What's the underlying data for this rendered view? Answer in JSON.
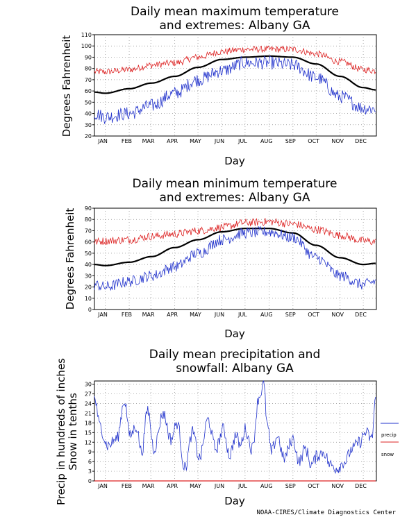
{
  "months": [
    "JAN",
    "FEB",
    "MAR",
    "APR",
    "MAY",
    "JUN",
    "JUL",
    "AUG",
    "SEP",
    "OCT",
    "NOV",
    "DEC"
  ],
  "credit": "NOAA-CIRES/Climate Diagnostics Center",
  "colors": {
    "mean": "#000000",
    "max_extreme": "#dd2222",
    "min_extreme": "#2233cc",
    "precip": "#2233cc",
    "snow": "#dd2222",
    "grid": "#888888"
  },
  "chart_data": [
    {
      "type": "line",
      "title_line1": "Daily mean maximum temperature",
      "title_line2": "and extremes: Albany GA",
      "xlabel": "Day",
      "ylabel": "Degrees Fahrenheit",
      "ylim": [
        20,
        110
      ],
      "yticks": [
        20,
        30,
        40,
        50,
        60,
        70,
        80,
        90,
        100,
        110
      ],
      "grid": true,
      "series": [
        {
          "role": "high-extreme",
          "anchors_x": [
            1,
            15,
            46,
            75,
            105,
            135,
            166,
            196,
            227,
            258,
            288,
            319,
            349,
            365
          ],
          "anchors_y": [
            77,
            77,
            79,
            83,
            85,
            90,
            95,
            97,
            97,
            97,
            93,
            86,
            79,
            78
          ],
          "noise": 3.0
        },
        {
          "role": "mean",
          "anchors_x": [
            1,
            15,
            46,
            75,
            105,
            135,
            166,
            196,
            227,
            258,
            288,
            319,
            349,
            365
          ],
          "anchors_y": [
            59,
            58,
            62,
            67,
            73,
            81,
            88,
            90,
            91,
            90,
            84,
            73,
            63,
            61
          ],
          "noise": 0
        },
        {
          "role": "low-extreme",
          "anchors_x": [
            1,
            15,
            46,
            75,
            105,
            135,
            166,
            196,
            227,
            258,
            288,
            319,
            349,
            365
          ],
          "anchors_y": [
            40,
            37,
            40,
            47,
            58,
            70,
            78,
            85,
            85,
            83,
            72,
            55,
            45,
            44
          ],
          "noise": 6.0
        }
      ]
    },
    {
      "type": "line",
      "title_line1": "Daily mean minimum temperature",
      "title_line2": "and extremes: Albany GA",
      "xlabel": "Day",
      "ylabel": "Degrees Fahrenheit",
      "ylim": [
        0,
        90
      ],
      "yticks": [
        0,
        10,
        20,
        30,
        40,
        50,
        60,
        70,
        80,
        90
      ],
      "grid": true,
      "series": [
        {
          "role": "high-extreme",
          "anchors_x": [
            1,
            15,
            46,
            75,
            105,
            135,
            166,
            196,
            227,
            258,
            288,
            319,
            349,
            365
          ],
          "anchors_y": [
            60,
            61,
            62,
            65,
            67,
            70,
            73,
            77,
            78,
            76,
            71,
            66,
            61,
            60
          ],
          "noise": 3.5
        },
        {
          "role": "mean",
          "anchors_x": [
            1,
            15,
            46,
            75,
            105,
            135,
            166,
            196,
            227,
            258,
            288,
            319,
            349,
            365
          ],
          "anchors_y": [
            40,
            39,
            42,
            47,
            55,
            62,
            69,
            72,
            72,
            68,
            57,
            46,
            40,
            41
          ],
          "noise": 0
        },
        {
          "role": "low-extreme",
          "anchors_x": [
            1,
            15,
            46,
            75,
            105,
            135,
            166,
            196,
            227,
            258,
            288,
            319,
            349,
            365
          ],
          "anchors_y": [
            22,
            20,
            25,
            30,
            38,
            50,
            62,
            68,
            69,
            64,
            46,
            30,
            22,
            25
          ],
          "noise": 5.0
        }
      ]
    },
    {
      "type": "line",
      "title_line1": "Daily mean precipitation and",
      "title_line2": "snowfall: Albany GA",
      "xlabel": "Day",
      "ylabel_line1": "Precip in hundreds of inches",
      "ylabel_line2": "Snow in tenths",
      "ylim": [
        0,
        31
      ],
      "yticks": [
        0,
        3,
        6,
        9,
        12,
        15,
        18,
        21,
        24,
        27,
        30
      ],
      "grid": true,
      "legend": [
        "precip",
        "snow"
      ],
      "series": [
        {
          "role": "precip",
          "name": "precip",
          "anchors_x": [
            1,
            8,
            18,
            30,
            40,
            47,
            55,
            62,
            70,
            78,
            90,
            100,
            108,
            118,
            128,
            137,
            148,
            158,
            168,
            176,
            184,
            190,
            196,
            205,
            214,
            220,
            225,
            230,
            238,
            246,
            258,
            266,
            274,
            282,
            290,
            298,
            306,
            315,
            325,
            335,
            344,
            352,
            360,
            365
          ],
          "anchors_y": [
            26,
            17,
            11,
            13,
            25,
            14,
            17,
            9,
            22,
            10,
            21,
            13,
            18,
            4,
            15,
            7,
            19,
            10,
            16,
            8,
            14,
            11,
            16,
            10,
            26,
            30,
            17,
            9,
            14,
            7,
            13,
            6,
            10,
            5,
            8,
            9,
            5,
            4,
            6,
            10,
            12,
            15,
            13,
            26
          ],
          "noise": 2.0
        },
        {
          "role": "snow",
          "name": "snow",
          "anchors_x": [
            1,
            365
          ],
          "anchors_y": [
            0,
            0
          ],
          "noise": 0
        }
      ]
    }
  ]
}
